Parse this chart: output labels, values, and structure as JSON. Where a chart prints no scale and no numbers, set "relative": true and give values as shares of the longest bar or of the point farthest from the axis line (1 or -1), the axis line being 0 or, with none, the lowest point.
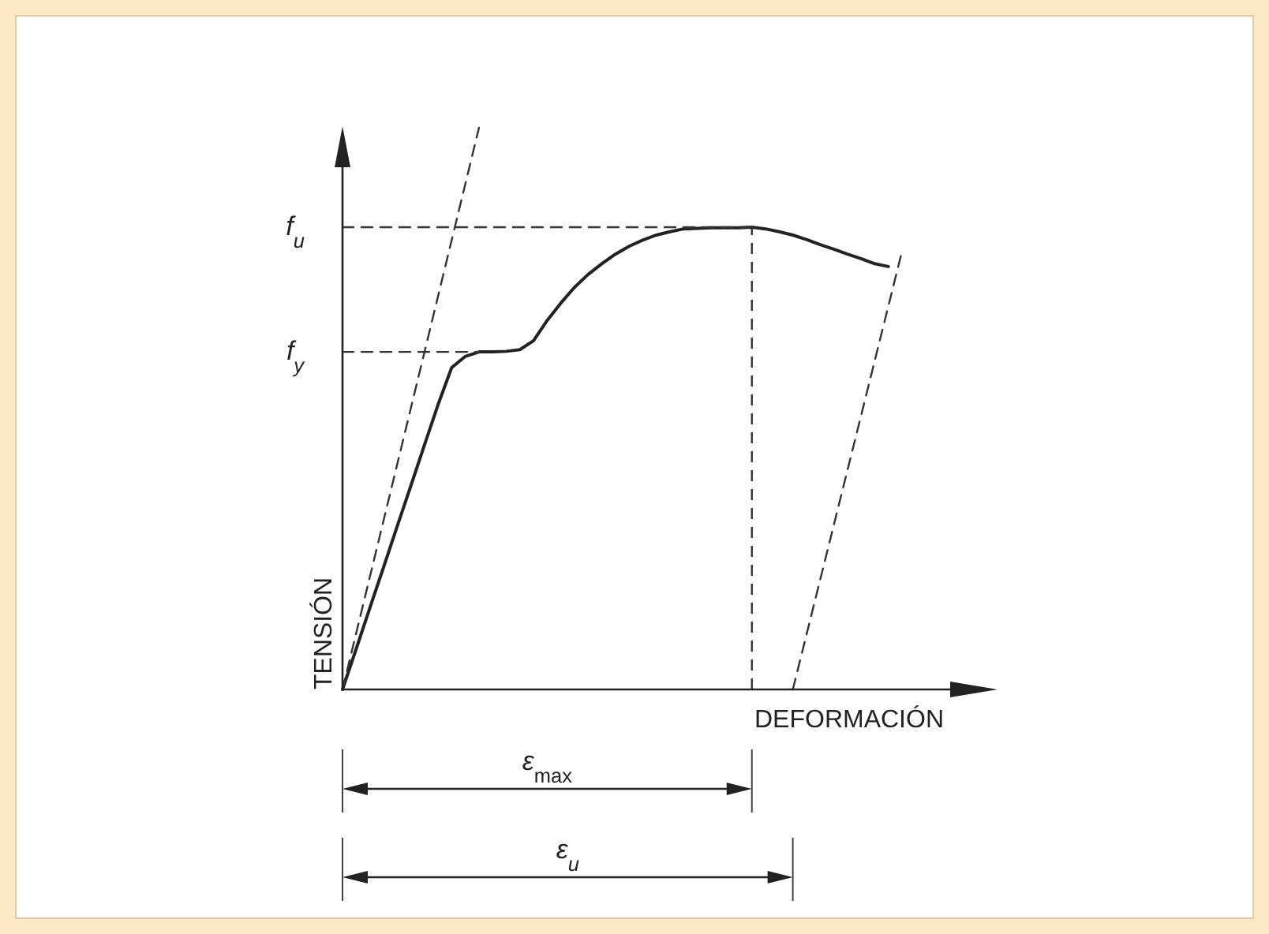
{
  "chart_data": {
    "type": "line",
    "relative": true,
    "xlabel": "DEFORMACIÓN",
    "ylabel": "TENSIÓN",
    "categories": [
      null,
      null,
      null,
      null,
      null,
      null,
      null,
      null,
      null,
      null,
      null,
      null,
      null,
      null,
      null,
      null,
      null,
      null,
      null,
      null,
      null,
      null,
      null,
      null,
      null,
      null,
      null,
      null,
      null,
      null,
      null,
      null,
      null,
      null,
      null,
      null,
      null,
      null,
      null,
      null,
      null,
      null,
      null,
      null,
      null,
      null,
      null,
      null,
      null
    ],
    "series": [
      {
        "color": "#222222",
        "line_style": "solid",
        "values": [
          0,
          0.072,
          0.145,
          0.217,
          0.29,
          0.362,
          0.435,
          0.507,
          0.573,
          0.593,
          0.601,
          0.601,
          0.602,
          0.605,
          0.621,
          0.657,
          0.688,
          0.716,
          0.739,
          0.758,
          0.775,
          0.789,
          0.8,
          0.809,
          0.815,
          0.82,
          0.821,
          0.822,
          0.822,
          0.822,
          0.823,
          0.82,
          0.815,
          0.809,
          0.801,
          0.792,
          0.784,
          0.775,
          0.767,
          0.758,
          0.753,
          null,
          null,
          null,
          null,
          null,
          null,
          null,
          null
        ]
      },
      {
        "type": "line",
        "color": "#333333",
        "line_style": "dashed",
        "values": [
          0,
          null,
          null,
          null,
          null,
          null,
          null,
          null,
          null,
          null,
          1,
          null,
          null,
          null,
          null,
          null,
          null,
          null,
          null,
          null,
          null,
          null,
          null,
          null,
          null,
          null,
          null,
          null,
          null,
          null,
          null,
          null,
          null,
          null,
          null,
          null,
          null,
          null,
          null,
          null,
          null,
          null,
          null,
          null,
          null,
          null,
          null,
          null,
          null
        ]
      },
      {
        "type": "line",
        "color": "#333333",
        "line_style": "dashed",
        "values": [
          null,
          null,
          null,
          null,
          null,
          null,
          null,
          null,
          null,
          null,
          null,
          null,
          null,
          null,
          null,
          null,
          null,
          null,
          null,
          null,
          null,
          null,
          null,
          null,
          null,
          null,
          null,
          null,
          null,
          null,
          null,
          null,
          null,
          0,
          null,
          null,
          null,
          null,
          null,
          null,
          null,
          0.78,
          null,
          null,
          null,
          null,
          null,
          null,
          null
        ]
      },
      {
        "type": "line",
        "name": "f$_{u}$",
        "color": "#333333",
        "line_style": "dashed",
        "values": [
          0.823,
          0.823,
          0.823,
          0.823,
          0.823,
          0.823,
          0.823,
          0.823,
          0.823,
          0.823,
          0.823,
          0.823,
          0.823,
          0.823,
          0.823,
          0.823,
          0.823,
          0.823,
          0.823,
          0.823,
          0.823,
          0.823,
          0.823,
          0.823,
          0.823,
          0.823,
          0.823,
          0.823,
          0.823,
          0.823,
          0.823,
          null,
          null,
          null,
          null,
          null,
          null,
          null,
          null,
          null,
          null,
          null,
          null,
          null,
          null,
          null,
          null,
          null,
          null
        ]
      },
      {
        "type": "line",
        "name": "f$_{y}$",
        "color": "#333333",
        "line_style": "dashed",
        "values": [
          0.601,
          0.601,
          0.601,
          0.601,
          0.601,
          0.601,
          0.601,
          0.601,
          0.601,
          0.601,
          0.601,
          null,
          null,
          null,
          null,
          null,
          null,
          null,
          null,
          null,
          null,
          null,
          null,
          null,
          null,
          null,
          null,
          null,
          null,
          null,
          null,
          null,
          null,
          null,
          null,
          null,
          null,
          null,
          null,
          null,
          null,
          null,
          null,
          null,
          null,
          null,
          null,
          null,
          null
        ]
      }
    ],
    "annotations": [
      "ε$_{max}$",
      "ε$_{u}$"
    ]
  }
}
